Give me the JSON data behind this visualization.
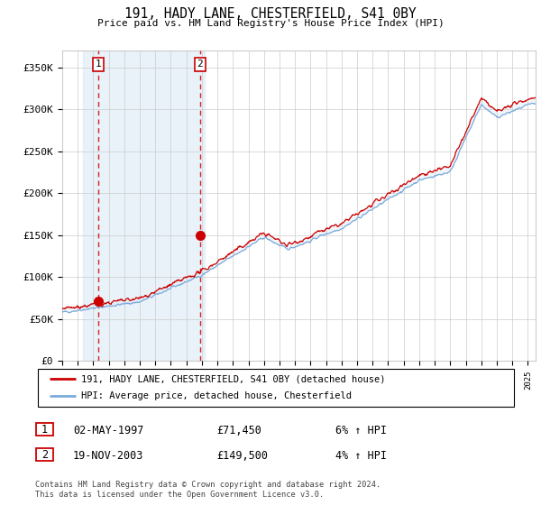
{
  "title": "191, HADY LANE, CHESTERFIELD, S41 0BY",
  "subtitle": "Price paid vs. HM Land Registry's House Price Index (HPI)",
  "ylabel_ticks": [
    "£0",
    "£50K",
    "£100K",
    "£150K",
    "£200K",
    "£250K",
    "£300K",
    "£350K"
  ],
  "ytick_vals": [
    0,
    50000,
    100000,
    150000,
    200000,
    250000,
    300000,
    350000
  ],
  "ylim": [
    0,
    370000
  ],
  "xlim_start": 1995.0,
  "xlim_end": 2025.5,
  "purchase1_date": 1997.33,
  "purchase1_price": 71450,
  "purchase1_label": "1",
  "purchase2_date": 2003.88,
  "purchase2_price": 149500,
  "purchase2_label": "2",
  "legend_line1": "191, HADY LANE, CHESTERFIELD, S41 0BY (detached house)",
  "legend_line2": "HPI: Average price, detached house, Chesterfield",
  "table_row1": [
    "1",
    "02-MAY-1997",
    "£71,450",
    "6% ↑ HPI"
  ],
  "table_row2": [
    "2",
    "19-NOV-2003",
    "£149,500",
    "4% ↑ HPI"
  ],
  "footer": "Contains HM Land Registry data © Crown copyright and database right 2024.\nThis data is licensed under the Open Government Licence v3.0.",
  "hpi_color": "#7aabdb",
  "price_color": "#cc0000",
  "shade_color": "#d8e8f5",
  "grid_color": "#cccccc",
  "purchase_marker_color": "#cc0000",
  "vline_color": "#cc0000",
  "box_color": "#cc0000",
  "bg_color": "#ffffff"
}
